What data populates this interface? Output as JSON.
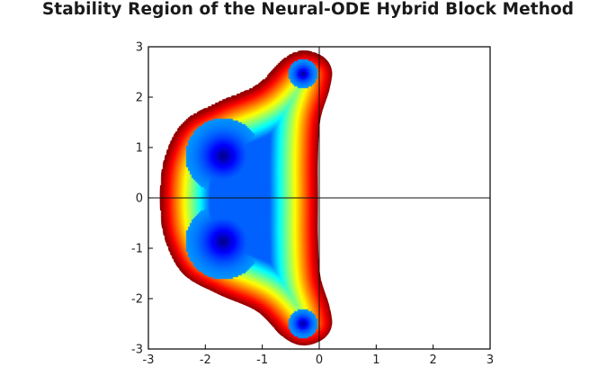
{
  "chart_data": {
    "type": "heatmap",
    "title": "Stability Region of the Neural-ODE Hybrid Block Method",
    "xlabel": "",
    "ylabel": "",
    "xlim": [
      -3,
      3
    ],
    "ylim": [
      -3,
      3
    ],
    "x_ticks": [
      "-3",
      "-2",
      "-1",
      "0",
      "1",
      "2",
      "3"
    ],
    "y_ticks": [
      "3",
      "2",
      "1",
      "0",
      "-1",
      "-2",
      "-3"
    ],
    "grid": false,
    "legend": "none",
    "colormap": "jet",
    "region_boundary": [
      [
        -0.3,
        2.93
      ],
      [
        0.05,
        2.82
      ],
      [
        0.22,
        2.55
      ],
      [
        0.18,
        2.15
      ],
      [
        0.02,
        1.55
      ],
      [
        -0.02,
        0.8
      ],
      [
        -0.02,
        0.0
      ],
      [
        -0.02,
        -0.8
      ],
      [
        0.02,
        -1.55
      ],
      [
        0.18,
        -2.15
      ],
      [
        0.22,
        -2.55
      ],
      [
        0.05,
        -2.82
      ],
      [
        -0.3,
        -2.93
      ],
      [
        -0.65,
        -2.75
      ],
      [
        -1.1,
        -2.25
      ],
      [
        -1.8,
        -1.9
      ],
      [
        -2.4,
        -1.5
      ],
      [
        -2.72,
        -0.8
      ],
      [
        -2.8,
        0.0
      ],
      [
        -2.72,
        0.8
      ],
      [
        -2.4,
        1.5
      ],
      [
        -1.8,
        1.9
      ],
      [
        -1.1,
        2.25
      ],
      [
        -0.65,
        2.75
      ]
    ],
    "minima": [
      {
        "re": -1.7,
        "im": 0.85
      },
      {
        "re": -1.7,
        "im": -0.85
      },
      {
        "re": -0.3,
        "im": 2.48
      },
      {
        "re": -0.3,
        "im": -2.48
      }
    ],
    "reference_lines": {
      "x": 0,
      "y": 0
    }
  }
}
